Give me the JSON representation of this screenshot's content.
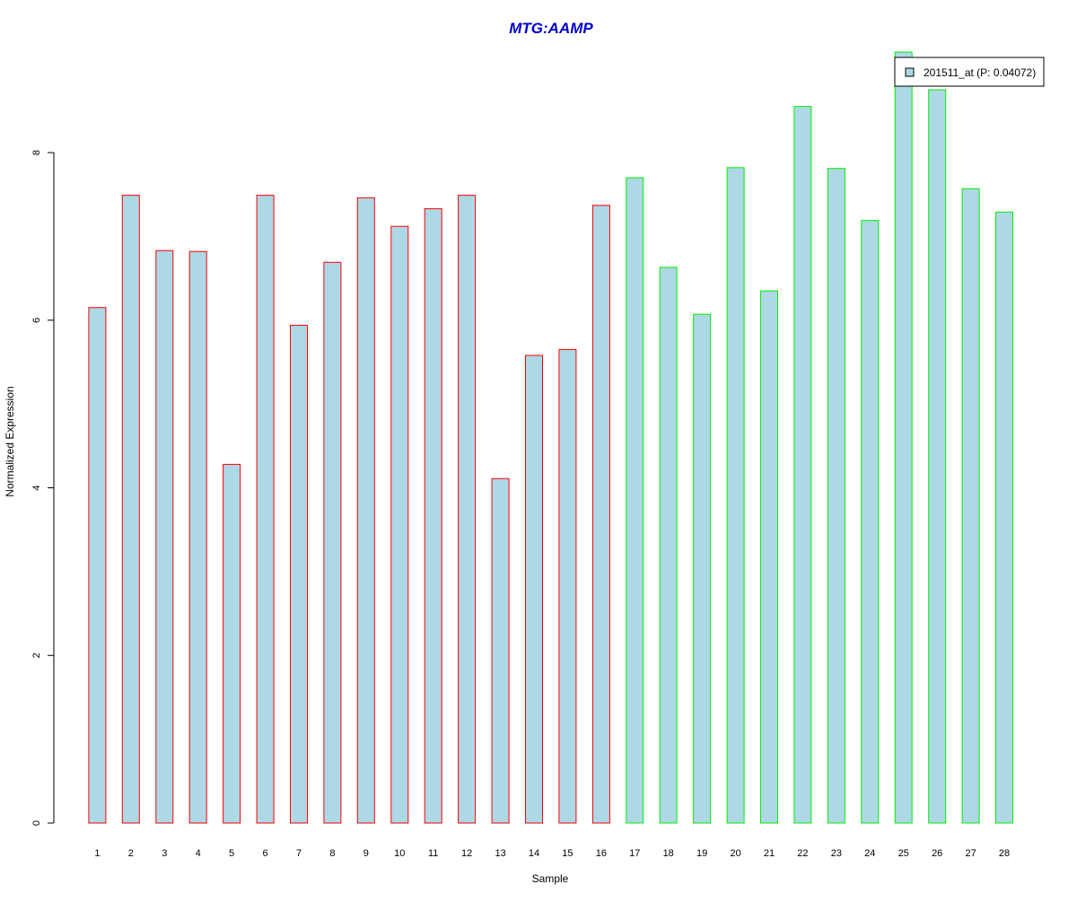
{
  "chart_data": {
    "type": "bar",
    "title": "MTG:AAMP",
    "xlabel": "Sample",
    "ylabel": "Normalized Expression",
    "categories": [
      "1",
      "2",
      "3",
      "4",
      "5",
      "6",
      "7",
      "8",
      "9",
      "10",
      "11",
      "12",
      "13",
      "14",
      "15",
      "16",
      "17",
      "18",
      "19",
      "20",
      "21",
      "22",
      "23",
      "24",
      "25",
      "26",
      "27",
      "28"
    ],
    "series": [
      {
        "name": "201511_at (P: 0.04072)",
        "values": [
          6.15,
          7.49,
          6.83,
          6.82,
          4.28,
          7.49,
          5.94,
          6.69,
          7.46,
          7.12,
          7.33,
          7.49,
          4.11,
          5.58,
          5.65,
          7.37,
          7.7,
          6.63,
          6.07,
          7.82,
          6.35,
          8.55,
          7.81,
          7.19,
          9.2,
          8.75,
          7.57,
          7.29
        ]
      }
    ],
    "group_colors": [
      "#ff0000",
      "#ff0000",
      "#ff0000",
      "#ff0000",
      "#ff0000",
      "#ff0000",
      "#ff0000",
      "#ff0000",
      "#ff0000",
      "#ff0000",
      "#ff0000",
      "#ff0000",
      "#ff0000",
      "#ff0000",
      "#ff0000",
      "#ff0000",
      "#00ee00",
      "#00ee00",
      "#00ee00",
      "#00ee00",
      "#00ee00",
      "#00ee00",
      "#00ee00",
      "#00ee00",
      "#00ee00",
      "#00ee00",
      "#00ee00",
      "#00ee00"
    ],
    "bar_fill": "#add8e6",
    "title_color": "#0000cc",
    "yticks": [
      0,
      2,
      4,
      6,
      8
    ],
    "ylim": [
      0,
      9.2
    ],
    "grid": false,
    "legend_position": "top-right"
  }
}
